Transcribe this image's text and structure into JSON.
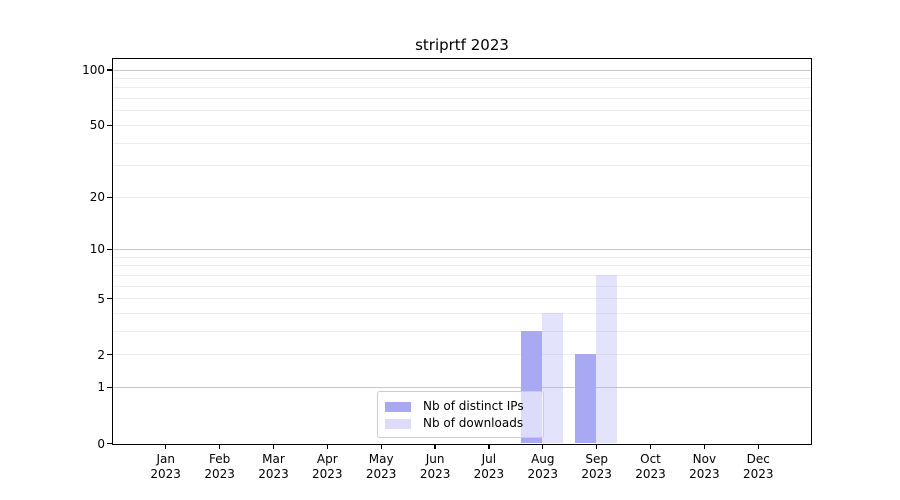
{
  "figure_title": "striprtf 2023",
  "chart_data": {
    "type": "bar",
    "title": "striprtf 2023",
    "categories": [
      "Jan",
      "Feb",
      "Mar",
      "Apr",
      "May",
      "Jun",
      "Jul",
      "Aug",
      "Sep",
      "Oct",
      "Nov",
      "Dec"
    ],
    "category_year": "2023",
    "series": [
      {
        "name": "Nb of distinct IPs",
        "color": "#a9a9f3",
        "fill": "rgba(169,169,243,1)",
        "values": [
          0,
          0,
          0,
          0,
          0,
          0,
          0,
          3,
          2,
          0,
          0,
          0
        ]
      },
      {
        "name": "Nb of downloads",
        "color": "#dcdcf8",
        "fill": "rgba(169,169,243,0.32)",
        "values": [
          0,
          0,
          0,
          0,
          0,
          0,
          0,
          4,
          7,
          0,
          0,
          0
        ]
      }
    ],
    "xlabel": "",
    "ylabel": "",
    "y_scale": "log1p",
    "ylim": [
      0,
      114
    ],
    "y_ticks_labeled": [
      0,
      1,
      2,
      5,
      10,
      20,
      50,
      100
    ],
    "gridlines_major": [
      1,
      10,
      100
    ],
    "gridlines_minor": [
      2,
      3,
      4,
      5,
      6,
      7,
      8,
      9,
      20,
      30,
      40,
      50,
      60,
      70,
      80,
      90
    ],
    "grid": true,
    "legend_position": "lower center (inside axes)"
  },
  "legend": {
    "items": [
      {
        "label": "Nb of distinct IPs",
        "color": "#a9a9f3"
      },
      {
        "label": "Nb of downloads",
        "color": "#dcdcf8"
      }
    ]
  }
}
